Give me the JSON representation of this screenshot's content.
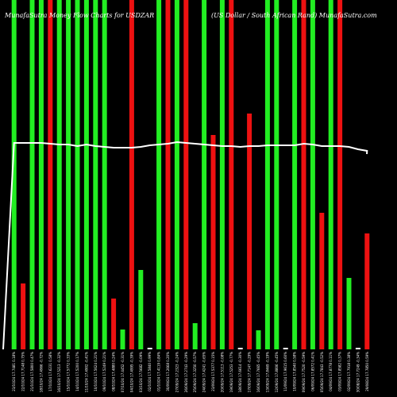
{
  "header": {
    "left": "MunafaSutra Money Flow Charts for USDZAR",
    "right": "(US Dollar / South African Rand) MunafaSutra.com"
  },
  "colors": {
    "background": "#000000",
    "up": "#22ee22",
    "down": "#ee1111",
    "line": "#ffffff"
  },
  "chart_data": {
    "type": "bar",
    "title": "MunafaSutra Money Flow Charts for USDZAR",
    "subtitle": "(US Dollar / South African Rand) MunafaSutra.com",
    "ylim": [
      0,
      440
    ],
    "grid": false,
    "categories": [
      "23/10/24 17.7481 0.18%",
      "22/10/24 17.7148 0.75%",
      "21/10/24 17.5800 0.47%",
      "18/10/24 17.4966 -0.72%",
      "17/10/24 17.6231 0.58%",
      "16/10/24 17.5213 -0.32%",
      "15/10/24 17.5772 0.33%",
      "14/10/24 17.5200 0.17%",
      "11/10/24 17.4902 -0.41%",
      "10/10/24 17.5624 0.21%",
      "09/10/24 17.5249 0.21%",
      "08/10/24 17.4880 0.24%",
      "07/10/24 17.4452 -0.31%",
      "04/10/24 17.4995 -0.39%",
      "03/10/24 17.5682 -0.09%",
      "02/10/24 17.5840 0.99%",
      "01/10/24 17.4119 0.84%",
      "30/09/24 17.2668 0.20%",
      "27/09/24 17.2323 -0.24%",
      "26/09/24 17.2743 -0.29%",
      "25/09/24 17.3250 -0.57%",
      "24/09/24 17.4241 -0.65%",
      "23/09/24 17.5377 0.15%",
      "20/09/24 17.5113 -0.08%",
      "19/09/24 17.5253 -0.77%",
      "18/09/24 17.6614 -0.30%",
      "17/09/24 17.7147 -0.29%",
      "16/09/24 17.7665 -0.45%",
      "13/09/24 17.8469 -0.19%",
      "12/09/24 17.8806 -0.45%",
      "11/09/24 17.9615 0.60%",
      "10/09/24 17.8540 0.58%",
      "09/09/24 17.7520 -0.59%",
      "06/09/24 17.8572 0.41%",
      "05/09/24 17.7843 -0.52%",
      "04/09/24 17.8778 0.11%",
      "03/09/24 17.8582 0.37%",
      "02/09/24 17.7918 0.38%",
      "30/08/24 17.7249 -0.34%",
      "29/08/24 17.7850 0.59%"
    ],
    "directions": [
      "up",
      "down",
      "up",
      "up",
      "down",
      "up",
      "up",
      "up",
      "up",
      "up",
      "up",
      "down",
      "up",
      "down",
      "up",
      "up",
      "up",
      "down",
      "up",
      "down",
      "up",
      "up",
      "down",
      "up",
      "down",
      "up",
      "down",
      "up",
      "up",
      "up",
      "up",
      "up",
      "down",
      "up",
      "down",
      "up",
      "down",
      "up",
      "up",
      "down"
    ],
    "values": [
      440,
      83,
      440,
      440,
      440,
      440,
      440,
      440,
      440,
      440,
      440,
      64,
      25,
      440,
      100,
      2,
      440,
      440,
      440,
      440,
      33,
      440,
      270,
      440,
      440,
      2,
      297,
      24,
      440,
      440,
      2,
      440,
      440,
      440,
      172,
      440,
      440,
      90,
      2,
      146
    ],
    "line": [
      260,
      260,
      260,
      260,
      259,
      258,
      258,
      256,
      258,
      256,
      255,
      254,
      254,
      254,
      255,
      257,
      258,
      259,
      261,
      260,
      259,
      258,
      257,
      256,
      256,
      255,
      256,
      256,
      257,
      257,
      257,
      257,
      259,
      258,
      256,
      256,
      256,
      255,
      252,
      250
    ],
    "line_start": 0
  }
}
